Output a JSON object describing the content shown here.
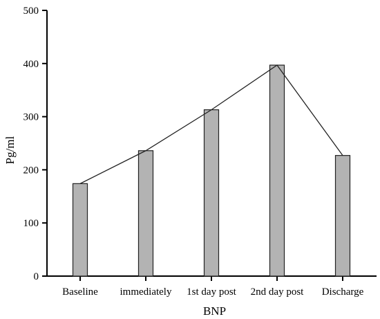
{
  "chart_data": {
    "type": "bar",
    "categories": [
      "Baseline",
      "immediately",
      "1st day post",
      "2nd day post",
      "Discharge"
    ],
    "values": [
      174,
      236,
      313,
      397,
      227
    ],
    "line_overlay": true,
    "xlabel": "BNP",
    "ylabel": "Pg/ml",
    "ylim": [
      0,
      500
    ],
    "yticks": [
      0,
      100,
      200,
      300,
      400,
      500
    ],
    "grid": false,
    "colors": {
      "bar_fill": "#b3b3b3",
      "bar_stroke": "#222222",
      "line": "#222222",
      "axis": "#000000"
    }
  }
}
